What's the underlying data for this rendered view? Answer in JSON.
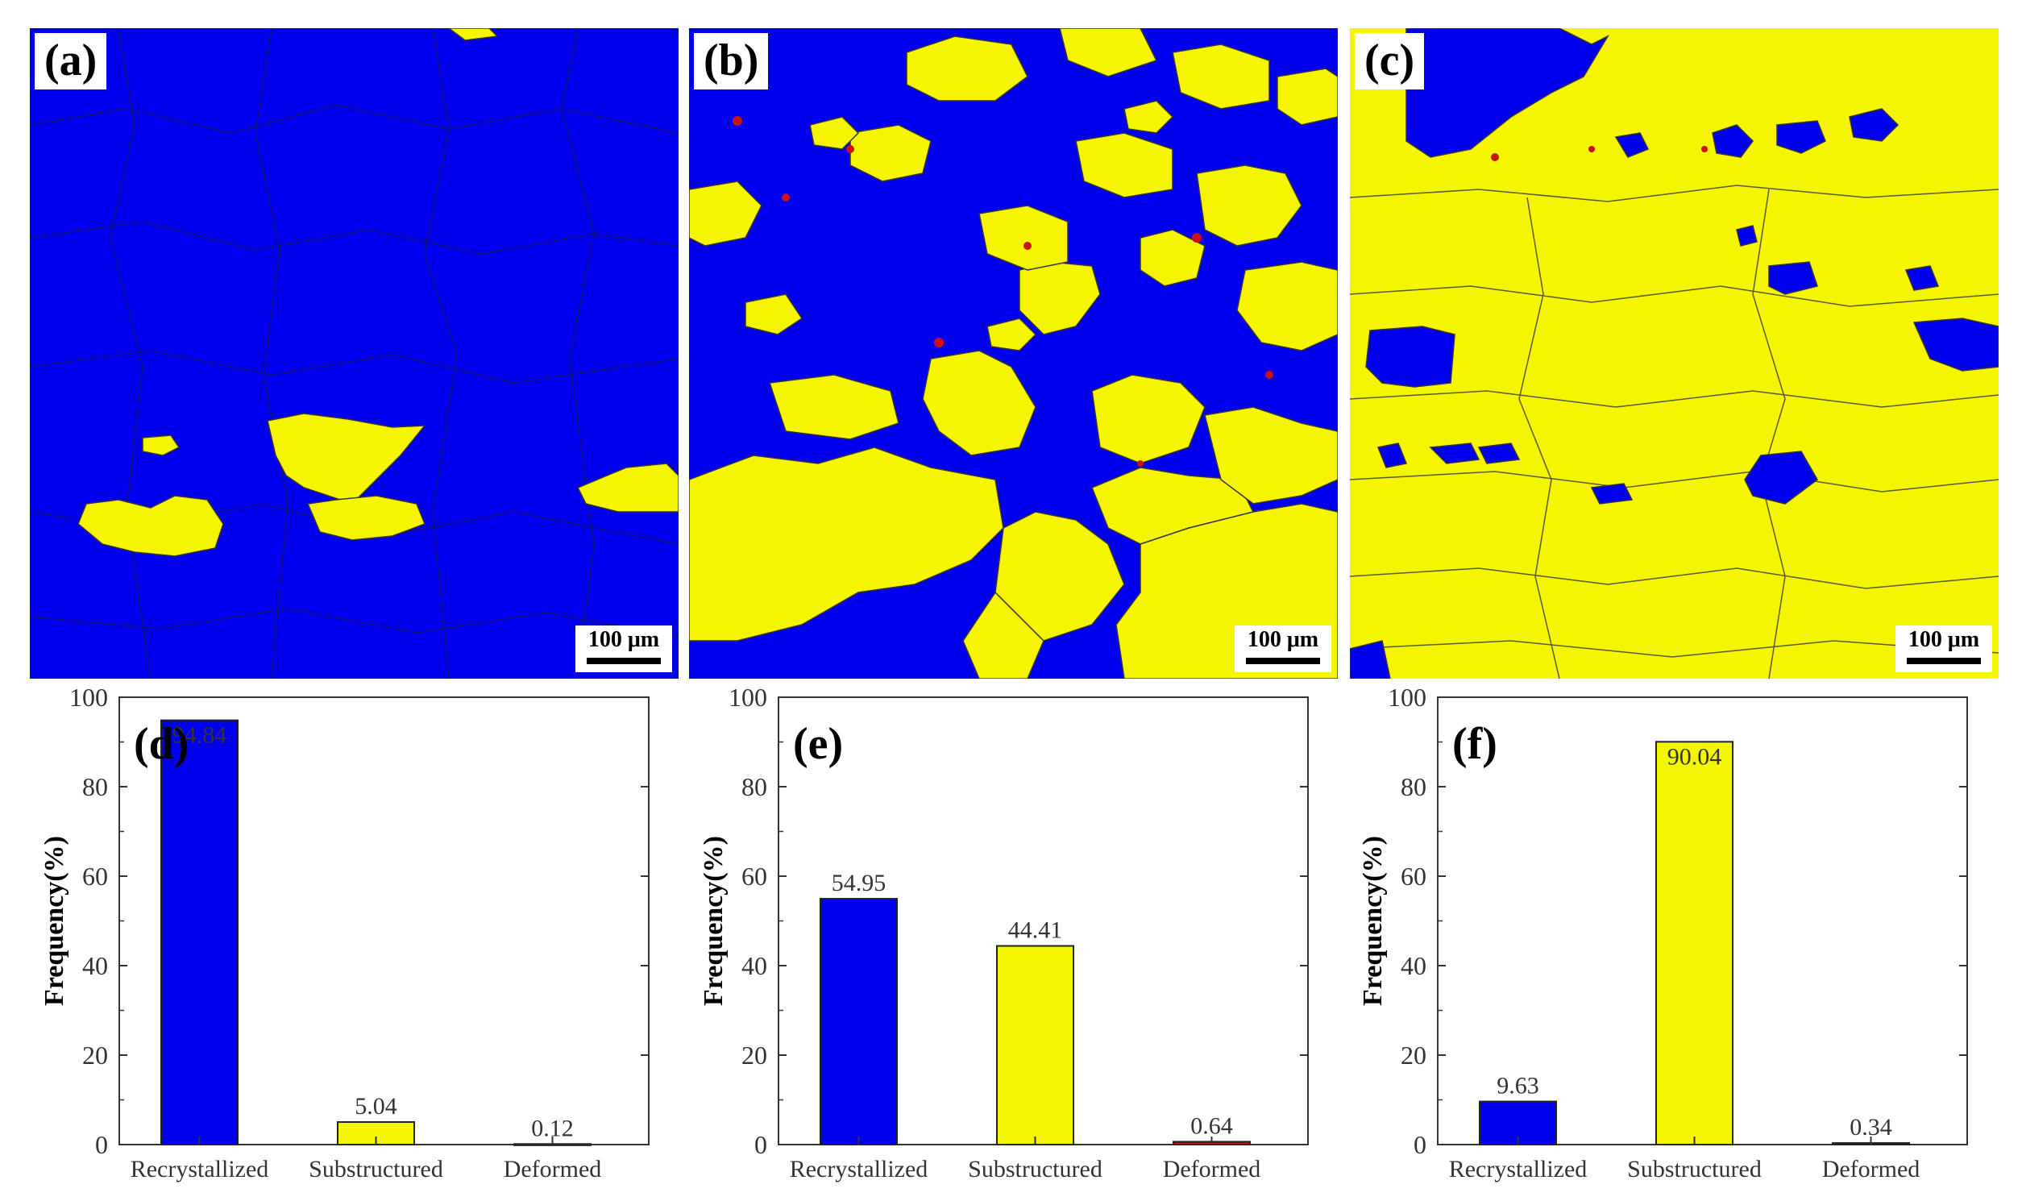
{
  "maps": [
    {
      "label": "(a)",
      "scale": "100 μm"
    },
    {
      "label": "(b)",
      "scale": "100 μm"
    },
    {
      "label": "(c)",
      "scale": "100 μm"
    }
  ],
  "colors": {
    "recrystallized": "#0000ee",
    "substructured": "#f5f500",
    "deformed": "#cc1111",
    "grain_boundary": "#222222"
  },
  "chart_data": [
    {
      "type": "bar",
      "panel": "(d)",
      "categories": [
        "Recrystallized",
        "Substructured",
        "Deformed"
      ],
      "values": [
        94.84,
        5.04,
        0.12
      ],
      "value_labels": [
        "94.84",
        "5.04",
        "0.12"
      ],
      "ylabel": "Frequency(%)",
      "ylim": [
        0,
        100
      ],
      "yticks": [
        "0",
        "20",
        "40",
        "60",
        "80",
        "100"
      ],
      "bar_colors": [
        "#0000ee",
        "#f5f500",
        "#cc1111"
      ]
    },
    {
      "type": "bar",
      "panel": "(e)",
      "categories": [
        "Recrystallized",
        "Substructured",
        "Deformed"
      ],
      "values": [
        54.95,
        44.41,
        0.64
      ],
      "value_labels": [
        "54.95",
        "44.41",
        "0.64"
      ],
      "ylabel": "Frequency(%)",
      "ylim": [
        0,
        100
      ],
      "yticks": [
        "0",
        "20",
        "40",
        "60",
        "80",
        "100"
      ],
      "bar_colors": [
        "#0000ee",
        "#f5f500",
        "#cc1111"
      ]
    },
    {
      "type": "bar",
      "panel": "(f)",
      "categories": [
        "Recrystallized",
        "Substructured",
        "Deformed"
      ],
      "values": [
        9.63,
        90.04,
        0.34
      ],
      "value_labels": [
        "9.63",
        "90.04",
        "0.34"
      ],
      "ylabel": "Frequency(%)",
      "ylim": [
        0,
        100
      ],
      "yticks": [
        "0",
        "20",
        "40",
        "60",
        "80",
        "100"
      ],
      "bar_colors": [
        "#0000ee",
        "#f5f500",
        "#cc1111"
      ]
    }
  ]
}
